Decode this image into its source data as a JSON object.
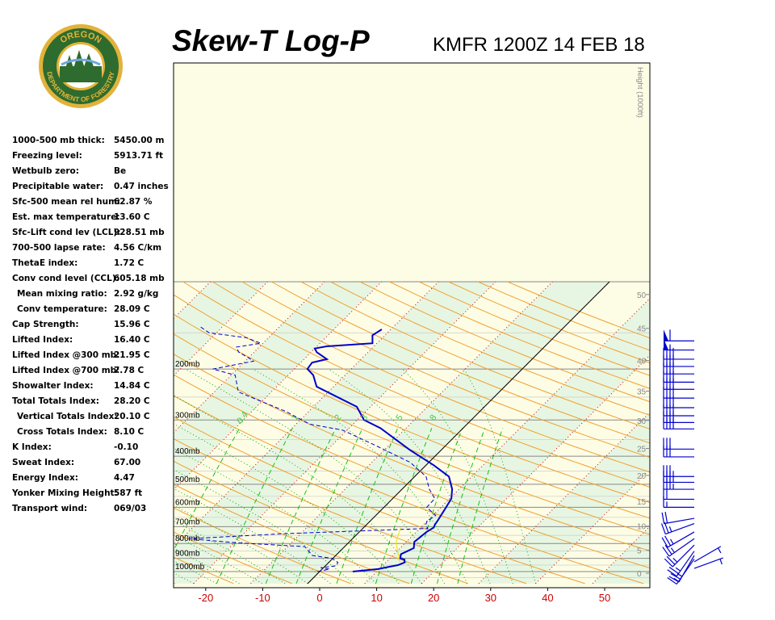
{
  "header": {
    "title": "Skew-T Log-P",
    "station_line": "KMFR 1200Z 14 FEB 18"
  },
  "logo": {
    "top_text": "OREGON",
    "bottom_text": "DEPARTMENT OF FORESTRY",
    "colors": {
      "green": "#2e6b2e",
      "gold": "#e2b33a"
    }
  },
  "indices": [
    {
      "label": "1000-500 mb thick:",
      "value": "5450.00 m"
    },
    {
      "label": "Freezing level:",
      "value": "5913.71 ft"
    },
    {
      "label": "Wetbulb zero:",
      "value": "Be"
    },
    {
      "label": "Precipitable water:",
      "value": "0.47 inches"
    },
    {
      "label": "Sfc-500 mean rel hum:",
      "value": "62.87 %"
    },
    {
      "label": "Est. max temperature:",
      "value": "13.60 C"
    },
    {
      "label": "Sfc-Lift cond lev (LCL):",
      "value": "928.51 mb"
    },
    {
      "label": "700-500 lapse rate:",
      "value": "4.56 C/km"
    },
    {
      "label": "ThetaE index:",
      "value": "1.72 C"
    },
    {
      "label": "Conv cond level (CCL):",
      "value": "605.18 mb"
    },
    {
      "label": "Mean mixing ratio:",
      "value": "2.92 g/kg",
      "indent": true
    },
    {
      "label": "Conv temperature:",
      "value": "28.09 C",
      "indent": true
    },
    {
      "label": "Cap Strength:",
      "value": "15.96 C"
    },
    {
      "label": "Lifted Index:",
      "value": "16.40 C"
    },
    {
      "label": "Lifted Index @300 mb:",
      "value": "21.95 C"
    },
    {
      "label": "Lifted Index @700 mb:",
      "value": "7.78 C"
    },
    {
      "label": "Showalter Index:",
      "value": "14.84 C"
    },
    {
      "label": "Total Totals Index:",
      "value": "28.20 C"
    },
    {
      "label": "Vertical Totals Index:",
      "value": "20.10 C",
      "indent": true
    },
    {
      "label": "Cross Totals Index:",
      "value": "8.10 C",
      "indent": true
    },
    {
      "label": "K Index:",
      "value": "-0.10"
    },
    {
      "label": "Sweat Index:",
      "value": "67.00"
    },
    {
      "label": "Energy Index:",
      "value": "4.47"
    },
    {
      "label": "Yonker Mixing Height:",
      "value": "587 ft"
    },
    {
      "label": "Transport wind:",
      "value": "069/03"
    }
  ],
  "chart_data": {
    "type": "line",
    "subtype": "skew-t log-p",
    "x_axis": {
      "label": "",
      "unit": "C",
      "ticks": [
        -20,
        -10,
        0,
        10,
        20,
        30,
        40,
        50
      ],
      "range": [
        -28,
        58
      ],
      "tick_color": "#cc0000"
    },
    "pressure_axis": {
      "scale": "log",
      "range_mb": [
        1100,
        140
      ],
      "labels": [
        "200mb",
        "300mb",
        "400mb",
        "500mb",
        "600mb",
        "700mb",
        "800mb",
        "900mb",
        "1000mb"
      ],
      "levels": [
        200,
        300,
        400,
        500,
        600,
        700,
        800,
        900,
        1000
      ]
    },
    "height_axis": {
      "label": "Height (1000ft)",
      "ticks": [
        "50",
        "45",
        "40",
        "35",
        "30",
        "25",
        "20",
        "15",
        "10",
        "5",
        "0"
      ]
    },
    "mixing_ratio_labels": [
      "0.4",
      "1",
      "2",
      "3",
      "5",
      "8"
    ],
    "skew_degrees": 45,
    "series": [
      {
        "kind": "temperature",
        "style": "solid",
        "color": "#0000cc",
        "points": [
          [
            1000,
            5.8
          ],
          [
            980,
            9.8
          ],
          [
            960,
            11.6
          ],
          [
            950,
            12.6
          ],
          [
            930,
            13.3
          ],
          [
            910,
            12.8
          ],
          [
            900,
            11.8
          ],
          [
            870,
            11.2
          ],
          [
            830,
            12.4
          ],
          [
            790,
            11.4
          ],
          [
            760,
            11.6
          ],
          [
            730,
            11.8
          ],
          [
            705,
            12.3
          ],
          [
            690,
            12.0
          ],
          [
            670,
            11.8
          ],
          [
            600,
            10.9
          ],
          [
            560,
            10.3
          ],
          [
            520,
            8.8
          ],
          [
            470,
            6.0
          ],
          [
            430,
            1.4
          ],
          [
            380,
            -5.6
          ],
          [
            320,
            -14.5
          ],
          [
            300,
            -18.8
          ],
          [
            270,
            -22.4
          ],
          [
            230,
            -33.0
          ],
          [
            210,
            -35.6
          ],
          [
            200,
            -37.7
          ],
          [
            190,
            -38.0
          ],
          [
            185,
            -36.0
          ],
          [
            175,
            -39.0
          ],
          [
            170,
            -40.0
          ],
          [
            167,
            -38.3
          ],
          [
            163,
            -30.8
          ],
          [
            153,
            -32.2
          ],
          [
            146,
            -31.6
          ]
        ]
      },
      {
        "kind": "dewpoint",
        "style": "dashed",
        "color": "#0000cc",
        "points": [
          [
            1000,
            -0.4
          ],
          [
            980,
            1.3
          ],
          [
            970,
            -0.5
          ],
          [
            955,
            1.9
          ],
          [
            930,
            1.6
          ],
          [
            900,
            -0.2
          ],
          [
            880,
            -4.1
          ],
          [
            820,
            -7.0
          ],
          [
            795,
            -20.0
          ],
          [
            770,
            -28.7
          ],
          [
            740,
            -13.0
          ],
          [
            710,
            11.4
          ],
          [
            690,
            10.4
          ],
          [
            670,
            10.0
          ],
          [
            640,
            10.5
          ],
          [
            600,
            7.5
          ],
          [
            560,
            7.4
          ],
          [
            520,
            4.8
          ],
          [
            470,
            2.0
          ],
          [
            420,
            -3.3
          ],
          [
            370,
            -11.8
          ],
          [
            325,
            -20.8
          ],
          [
            310,
            -27.6
          ],
          [
            280,
            -34.1
          ],
          [
            240,
            -45.8
          ],
          [
            210,
            -49.3
          ],
          [
            200,
            -54.3
          ],
          [
            188,
            -48.5
          ],
          [
            183,
            -50.0
          ],
          [
            175,
            -52.7
          ],
          [
            168,
            -54.0
          ],
          [
            163,
            -50.4
          ],
          [
            156,
            -53.9
          ],
          [
            150,
            -61.3
          ],
          [
            143,
            -63.9
          ]
        ]
      },
      {
        "kind": "parcel",
        "style": "solid",
        "color": "#e6e600",
        "points": [
          [
            705,
            6.5
          ],
          [
            760,
            7.6
          ],
          [
            800,
            8.5
          ],
          [
            860,
            10.4
          ],
          [
            928.5,
            12.4
          ]
        ]
      }
    ],
    "wind_barbs": [
      {
        "p": 160,
        "dir": 270,
        "spd": 60
      },
      {
        "p": 172,
        "dir": 270,
        "spd": 55
      },
      {
        "p": 185,
        "dir": 270,
        "spd": 40
      },
      {
        "p": 196,
        "dir": 270,
        "spd": 40
      },
      {
        "p": 208,
        "dir": 270,
        "spd": 40
      },
      {
        "p": 222,
        "dir": 270,
        "spd": 40
      },
      {
        "p": 235,
        "dir": 270,
        "spd": 40
      },
      {
        "p": 252,
        "dir": 270,
        "spd": 40
      },
      {
        "p": 272,
        "dir": 270,
        "spd": 40
      },
      {
        "p": 290,
        "dir": 270,
        "spd": 40
      },
      {
        "p": 306,
        "dir": 270,
        "spd": 40
      },
      {
        "p": 322,
        "dir": 270,
        "spd": 40
      },
      {
        "p": 378,
        "dir": 270,
        "spd": 30
      },
      {
        "p": 402,
        "dir": 270,
        "spd": 30
      },
      {
        "p": 470,
        "dir": 270,
        "spd": 35
      },
      {
        "p": 492,
        "dir": 270,
        "spd": 35
      },
      {
        "p": 520,
        "dir": 270,
        "spd": 35
      },
      {
        "p": 563,
        "dir": 270,
        "spd": 20
      },
      {
        "p": 600,
        "dir": 270,
        "spd": 15
      },
      {
        "p": 655,
        "dir": 260,
        "spd": 20
      },
      {
        "p": 683,
        "dir": 250,
        "spd": 25
      },
      {
        "p": 730,
        "dir": 240,
        "spd": 25
      },
      {
        "p": 770,
        "dir": 235,
        "spd": 25
      },
      {
        "p": 810,
        "dir": 225,
        "spd": 25
      },
      {
        "p": 850,
        "dir": 215,
        "spd": 25
      },
      {
        "p": 880,
        "dir": 210,
        "spd": 25
      },
      {
        "p": 905,
        "dir": 215,
        "spd": 15
      },
      {
        "p": 925,
        "dir": 60,
        "spd": 5
      },
      {
        "p": 975,
        "dir": 70,
        "spd": 5
      }
    ],
    "colors": {
      "background": "#ffffff",
      "stable_band": "#fdfde6",
      "moist_band": "#e7f6e2",
      "isobar": "#999999",
      "dry_adiabat": "#f0a030",
      "moist_adiabat": "#00a000",
      "isotherm": "#cc0000",
      "mixing_ratio": "#00bb00",
      "reference_line": "#000000",
      "height_ticks": "#888888"
    },
    "grid": true
  }
}
